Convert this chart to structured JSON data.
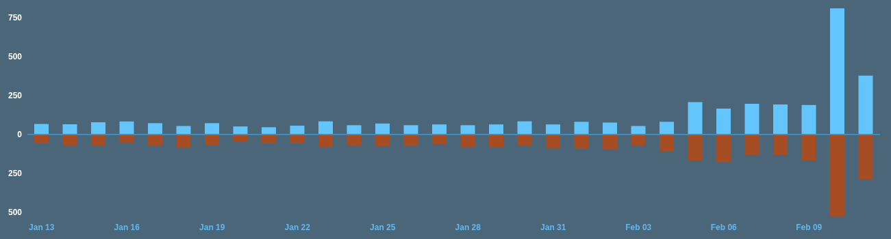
{
  "chart_data": {
    "type": "bar",
    "stacked": true,
    "categories": [
      "Jan 13",
      null,
      null,
      "Jan 16",
      null,
      null,
      "Jan 19",
      null,
      null,
      "Jan 22",
      null,
      null,
      "Jan 25",
      null,
      null,
      "Jan 28",
      null,
      null,
      "Jan 31",
      null,
      null,
      "Feb 03",
      null,
      null,
      "Feb 06",
      null,
      null,
      "Feb 09",
      null,
      null
    ],
    "series": [
      {
        "color": "#64c5fd",
        "values": [
          68,
          66,
          79,
          84,
          73,
          55,
          73,
          52,
          47,
          57,
          85,
          60,
          71,
          60,
          65,
          60,
          65,
          85,
          65,
          82,
          77,
          55,
          82,
          209,
          167,
          198,
          193,
          190,
          811,
          379
        ]
      },
      {
        "color": "#a54c23",
        "values": [
          -57,
          -71,
          -70,
          -52,
          -73,
          -85,
          -68,
          -44,
          -57,
          -55,
          -79,
          -74,
          -76,
          -74,
          -62,
          -79,
          -79,
          -71,
          -87,
          -92,
          -95,
          -71,
          -111,
          -167,
          -180,
          -131,
          -134,
          -167,
          -529,
          -289
        ]
      }
    ],
    "ylim": [
      -540,
      830
    ],
    "yticks": [
      {
        "value": -500,
        "label": "500"
      },
      {
        "value": -250,
        "label": "250"
      },
      0,
      250,
      500,
      750
    ],
    "ref_lines": [
      {
        "axis": "y",
        "value": 0,
        "color": "#3e8fbf"
      }
    ],
    "grid": false,
    "legend": false
  }
}
